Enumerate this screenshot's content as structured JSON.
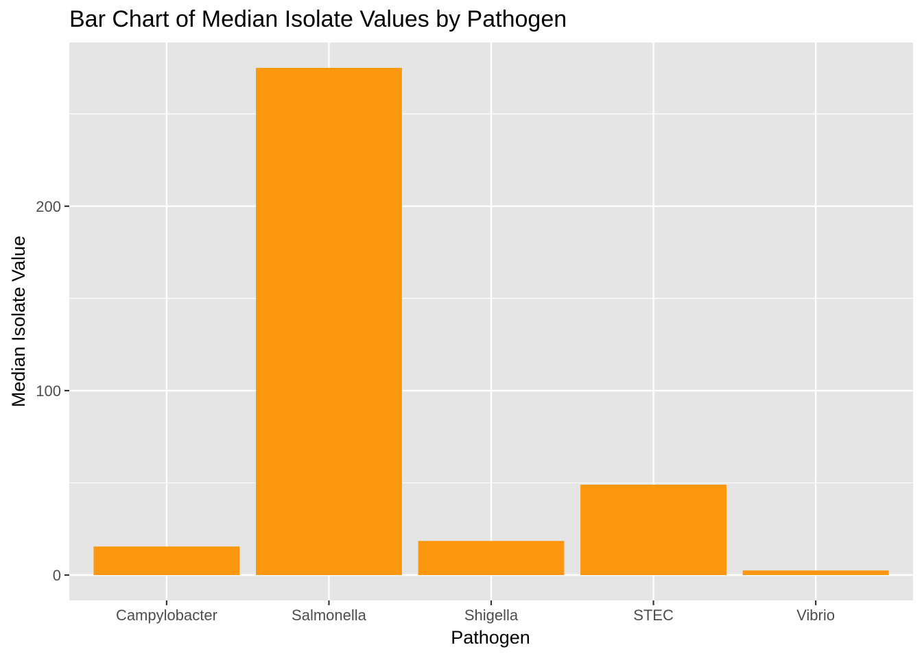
{
  "chart_data": {
    "type": "bar",
    "title": "Bar Chart of Median Isolate Values by Pathogen",
    "xlabel": "Pathogen",
    "ylabel": "Median Isolate Value",
    "categories": [
      "Campylobacter",
      "Salmonella",
      "Shigella",
      "STEC",
      "Vibrio"
    ],
    "values": [
      15.5,
      275,
      18.5,
      49,
      2.5
    ],
    "ylim": [
      -13.75,
      288.75
    ],
    "y_ticks": [
      0,
      100,
      200
    ],
    "y_tick_labels": [
      "0",
      "100",
      "200"
    ],
    "grid": true,
    "legend": "none",
    "bar_color": "#FD9710",
    "panel_background": "#E5E5E5",
    "grid_color": "#FFFFFF"
  }
}
